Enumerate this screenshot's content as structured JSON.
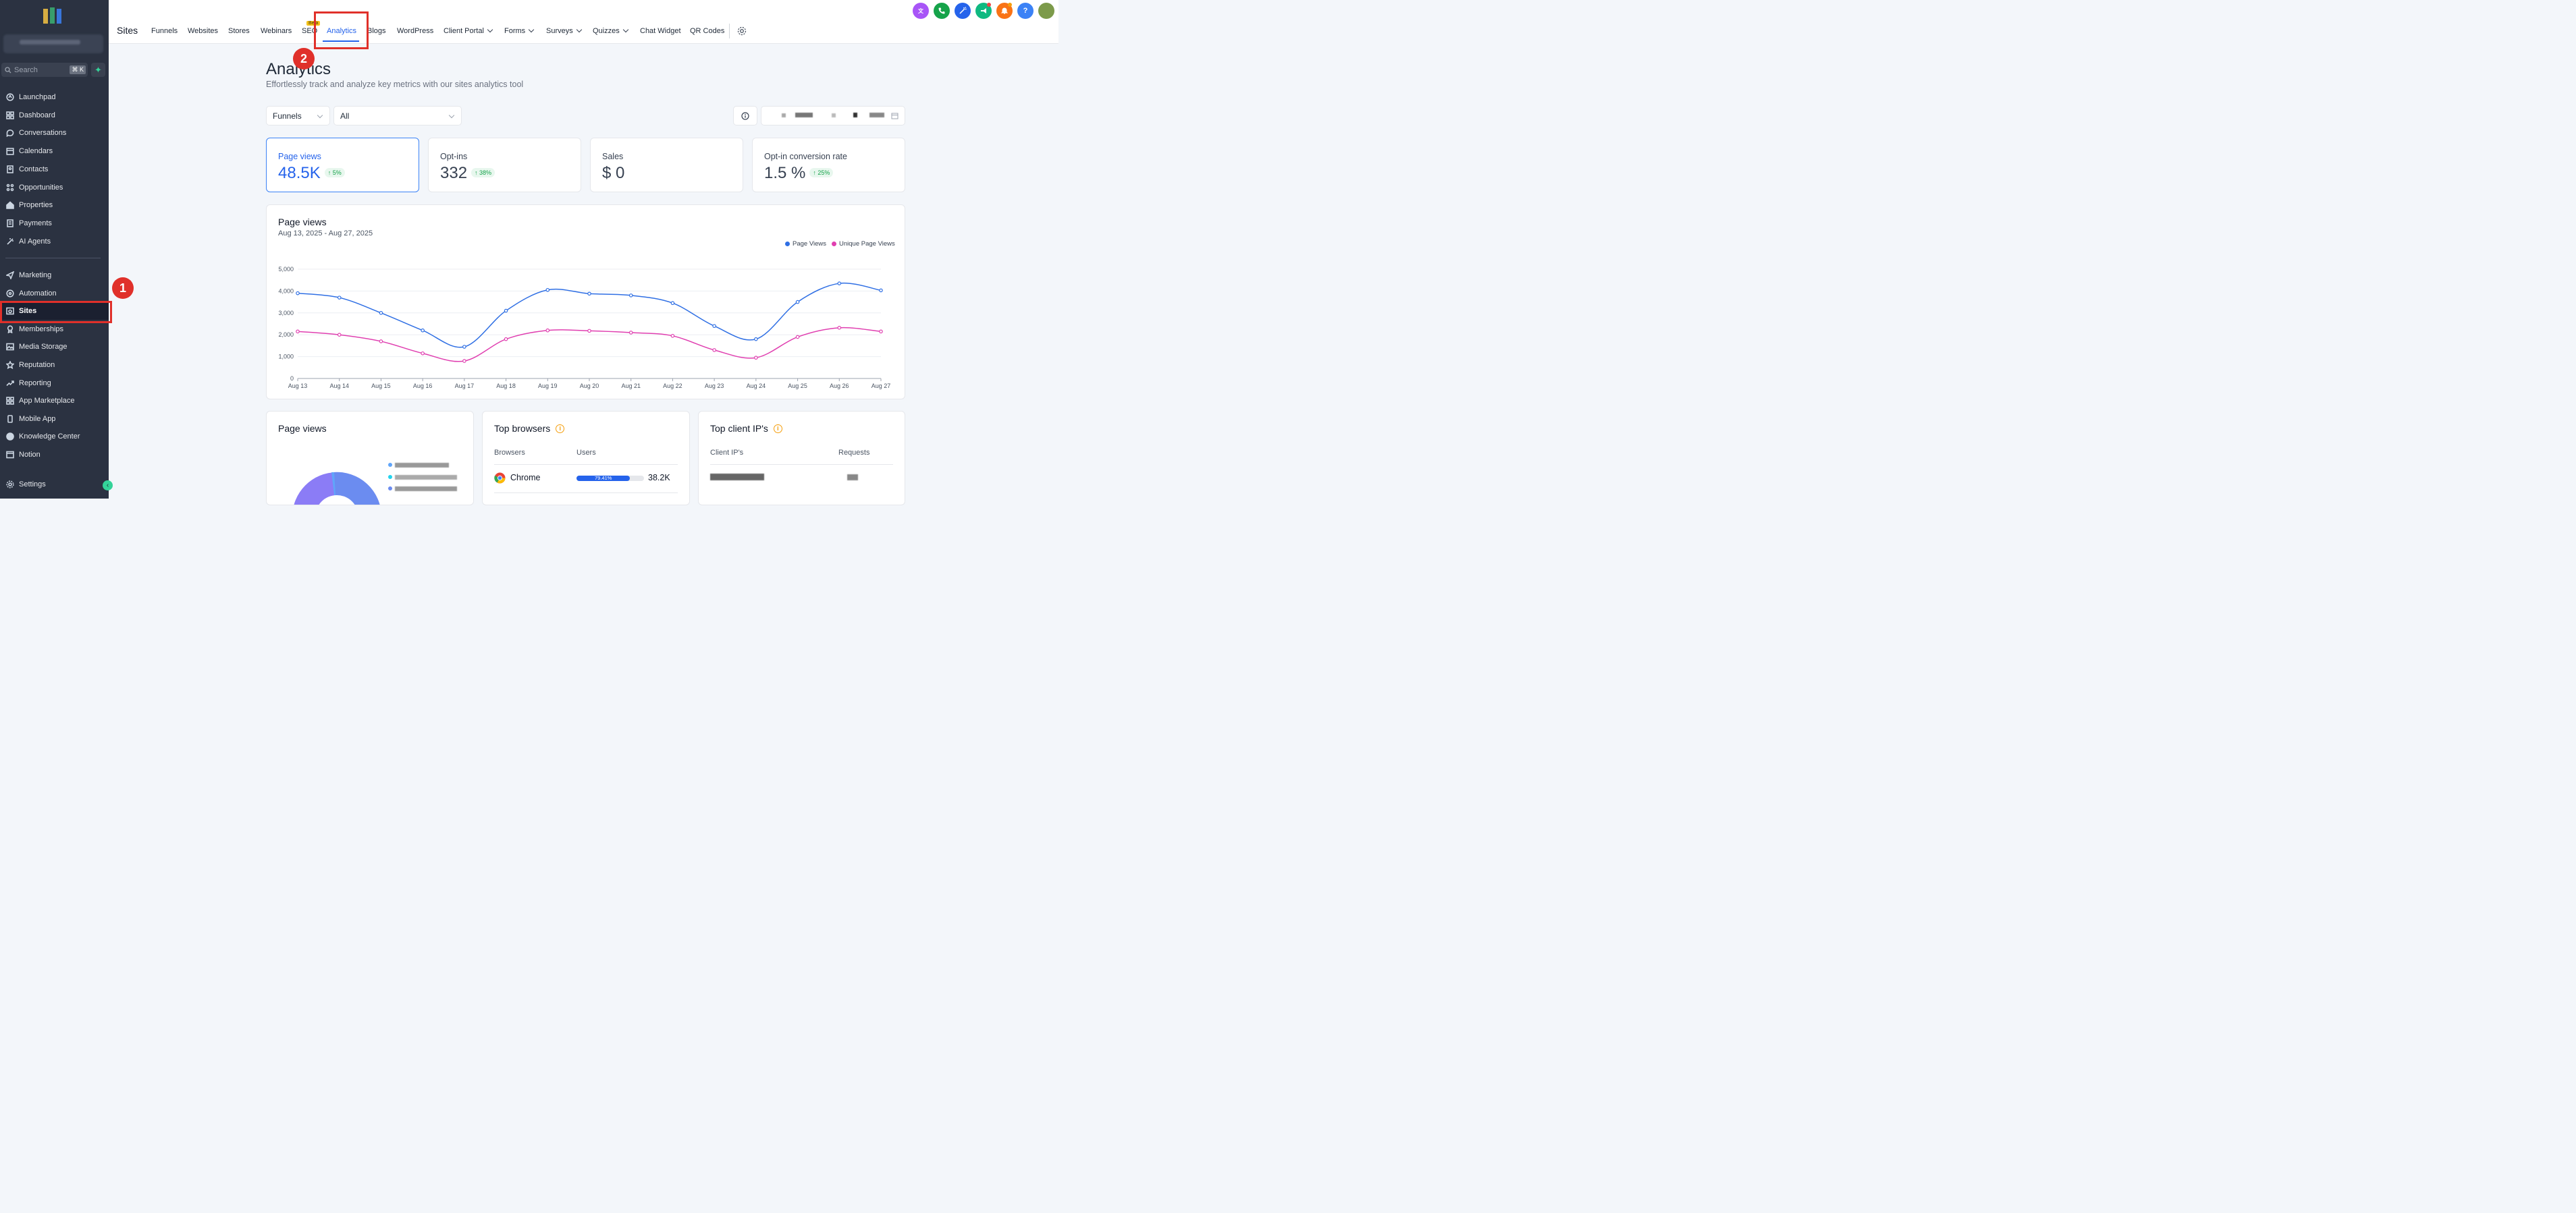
{
  "sidebar": {
    "search_placeholder": "Search",
    "search_shortcut": "⌘ K",
    "items_top": [
      {
        "label": "Launchpad",
        "icon": "launchpad-icon"
      },
      {
        "label": "Dashboard",
        "icon": "dashboard-icon"
      },
      {
        "label": "Conversations",
        "icon": "chat-icon"
      },
      {
        "label": "Calendars",
        "icon": "calendar-icon"
      },
      {
        "label": "Contacts",
        "icon": "contacts-icon"
      },
      {
        "label": "Opportunities",
        "icon": "opportunities-icon"
      },
      {
        "label": "Properties",
        "icon": "home-icon"
      },
      {
        "label": "Payments",
        "icon": "payments-icon"
      },
      {
        "label": "AI Agents",
        "icon": "ai-agents-icon"
      }
    ],
    "items_bottom": [
      {
        "label": "Marketing",
        "icon": "send-icon"
      },
      {
        "label": "Automation",
        "icon": "automation-icon"
      },
      {
        "label": "Sites",
        "icon": "sites-icon"
      },
      {
        "label": "Memberships",
        "icon": "award-icon"
      },
      {
        "label": "Media Storage",
        "icon": "image-icon"
      },
      {
        "label": "Reputation",
        "icon": "star-icon"
      },
      {
        "label": "Reporting",
        "icon": "trending-icon"
      },
      {
        "label": "App Marketplace",
        "icon": "grid-icon"
      },
      {
        "label": "Mobile App",
        "icon": "mobile-icon"
      },
      {
        "label": "Knowledge Center",
        "icon": "info-icon"
      },
      {
        "label": "Notion",
        "icon": "notion-icon"
      }
    ],
    "settings_label": "Settings",
    "active_item": "Sites"
  },
  "topnav": {
    "title": "Sites",
    "tabs": [
      {
        "label": "Funnels"
      },
      {
        "label": "Websites"
      },
      {
        "label": "Stores"
      },
      {
        "label": "Webinars"
      },
      {
        "label": "SEO"
      },
      {
        "label": "Analytics"
      },
      {
        "label": "Blogs"
      },
      {
        "label": "WordPress"
      },
      {
        "label": "Client Portal"
      },
      {
        "label": "Forms"
      },
      {
        "label": "Surveys"
      },
      {
        "label": "Quizzes"
      },
      {
        "label": "Chat Widget"
      },
      {
        "label": "QR Codes"
      }
    ],
    "beta_label": "Beta",
    "active_tab": "Analytics"
  },
  "header_buttons": [
    {
      "icon": "translate-icon",
      "color": "#a855f7"
    },
    {
      "icon": "phone-icon",
      "color": "#16a34a"
    },
    {
      "icon": "magic-icon",
      "color": "#2563eb"
    },
    {
      "icon": "megaphone-icon",
      "color": "#10b981"
    },
    {
      "icon": "bell-icon",
      "color": "#f97316"
    },
    {
      "icon": "help-icon",
      "color": "#3b82f6",
      "text": "?"
    }
  ],
  "annotations": {
    "badge1": "1",
    "badge2": "2"
  },
  "page": {
    "title": "Analytics",
    "subtitle": "Effortlessly track and analyze key metrics with our sites analytics tool",
    "filter_type": "Funnels",
    "filter_scope": "All"
  },
  "stats": [
    {
      "label": "Page views",
      "value": "48.5K",
      "change": "↑ 5%"
    },
    {
      "label": "Opt-ins",
      "value": "332",
      "change": "↑ 38%"
    },
    {
      "label": "Sales",
      "value": "$ 0",
      "change": ""
    },
    {
      "label": "Opt-in conversion rate",
      "value": "1.5 %",
      "change": "↑ 25%"
    }
  ],
  "chart_data": {
    "type": "line",
    "title": "Page views",
    "subtitle": "Aug 13, 2025 - Aug 27, 2025",
    "categories": [
      "Aug 13",
      "Aug 14",
      "Aug 15",
      "Aug 16",
      "Aug 17",
      "Aug 18",
      "Aug 19",
      "Aug 20",
      "Aug 21",
      "Aug 22",
      "Aug 23",
      "Aug 24",
      "Aug 25",
      "Aug 26",
      "Aug 27"
    ],
    "series": [
      {
        "name": "Page Views",
        "color": "#2f6fe4",
        "values": [
          3900,
          3700,
          3000,
          2200,
          1450,
          3100,
          4050,
          3880,
          3800,
          3450,
          2400,
          1800,
          3500,
          4350,
          4030
        ]
      },
      {
        "name": "Unique Page Views",
        "color": "#e03fb0",
        "values": [
          2150,
          2000,
          1700,
          1150,
          800,
          1800,
          2200,
          2180,
          2100,
          1950,
          1300,
          950,
          1900,
          2320,
          2150
        ]
      }
    ],
    "ylim": [
      0,
      5000
    ],
    "yticks": [
      "0",
      "1,000",
      "2,000",
      "3,000",
      "4,000",
      "5,000"
    ],
    "grid": true,
    "legend_position": "top-right"
  },
  "bottom": {
    "pageviews_title": "Page views",
    "browsers": {
      "title": "Top browsers",
      "col_browser": "Browsers",
      "col_users": "Users",
      "rows": [
        {
          "name": "Chrome",
          "percent": "79.41%",
          "fill": 0.7941,
          "users": "38.2K"
        }
      ]
    },
    "ips": {
      "title": "Top client IP's",
      "col_ip": "Client IP's",
      "col_requests": "Requests"
    }
  }
}
